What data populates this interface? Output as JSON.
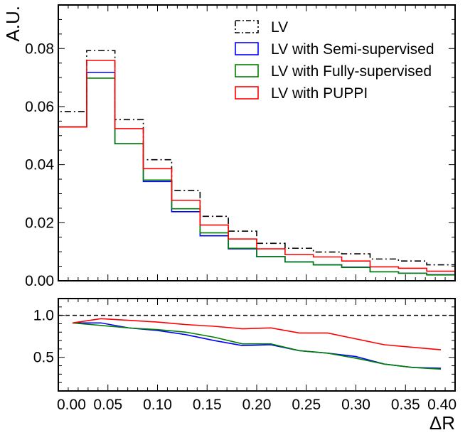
{
  "chart_data": [
    {
      "type": "step",
      "panel": "main",
      "ylabel": "A.U.",
      "ylim": [
        0,
        0.095
      ],
      "xlim": [
        0,
        0.4
      ],
      "bin_edges": [
        0.0,
        0.0286,
        0.0571,
        0.0857,
        0.1143,
        0.1429,
        0.1714,
        0.2,
        0.2286,
        0.2571,
        0.2857,
        0.3143,
        0.3429,
        0.3714,
        0.4
      ],
      "yticks": [
        0.0,
        0.02,
        0.04,
        0.06,
        0.08
      ],
      "ytick_labels": [
        "0.00",
        "0.02",
        "0.04",
        "0.06",
        "0.08"
      ],
      "legend_position": "top-right",
      "series": [
        {
          "name": "LV",
          "color": "#000000",
          "style": "dashdot",
          "values": [
            0.0583,
            0.0793,
            0.0555,
            0.0417,
            0.0311,
            0.0222,
            0.0171,
            0.0129,
            0.0112,
            0.0099,
            0.0093,
            0.0075,
            0.0068,
            0.0055
          ]
        },
        {
          "name": "LV with Semi-supervised",
          "color": "#0000ff",
          "style": "solid",
          "values": [
            0.053,
            0.0718,
            0.0472,
            0.0342,
            0.0238,
            0.0155,
            0.011,
            0.0083,
            0.0065,
            0.0055,
            0.0047,
            0.0031,
            0.0026,
            0.0021
          ]
        },
        {
          "name": "LV with Fully-supervised",
          "color": "#008000",
          "style": "solid",
          "values": [
            0.053,
            0.0698,
            0.0472,
            0.0347,
            0.0248,
            0.0165,
            0.0112,
            0.0083,
            0.0065,
            0.0055,
            0.0046,
            0.0031,
            0.0026,
            0.002
          ]
        },
        {
          "name": "LV with PUPPI",
          "color": "#ff0000",
          "style": "solid",
          "values": [
            0.053,
            0.0759,
            0.0524,
            0.0386,
            0.0277,
            0.0192,
            0.0144,
            0.011,
            0.009,
            0.0082,
            0.0068,
            0.0048,
            0.0043,
            0.0033
          ]
        }
      ]
    },
    {
      "type": "line",
      "panel": "ratio",
      "xlabel": "ΔR",
      "xlim": [
        0,
        0.4
      ],
      "ylim": [
        0.1,
        1.2
      ],
      "xticks": [
        0.0,
        0.05,
        0.1,
        0.15,
        0.2,
        0.25,
        0.3,
        0.35,
        0.4
      ],
      "xtick_labels": [
        "0.00",
        "0.05",
        "0.10",
        "0.15",
        "0.20",
        "0.25",
        "0.30",
        "0.35",
        "0.40"
      ],
      "yticks": [
        0.5,
        1.0
      ],
      "ytick_labels": [
        "0.5",
        "1.0"
      ],
      "reference_line": 1.0,
      "x": [
        0.0143,
        0.0429,
        0.0714,
        0.1,
        0.1286,
        0.1571,
        0.1857,
        0.2143,
        0.2429,
        0.2714,
        0.3,
        0.3286,
        0.3571,
        0.3857
      ],
      "series": [
        {
          "color": "#0000ff",
          "values": [
            0.91,
            0.91,
            0.85,
            0.82,
            0.77,
            0.7,
            0.64,
            0.65,
            0.58,
            0.55,
            0.51,
            0.42,
            0.38,
            0.37
          ]
        },
        {
          "color": "#008000",
          "values": [
            0.91,
            0.88,
            0.85,
            0.83,
            0.8,
            0.74,
            0.66,
            0.66,
            0.58,
            0.55,
            0.49,
            0.42,
            0.38,
            0.36
          ]
        },
        {
          "color": "#ff0000",
          "values": [
            0.91,
            0.96,
            0.94,
            0.92,
            0.89,
            0.87,
            0.84,
            0.85,
            0.79,
            0.79,
            0.72,
            0.65,
            0.62,
            0.59
          ]
        }
      ]
    }
  ]
}
